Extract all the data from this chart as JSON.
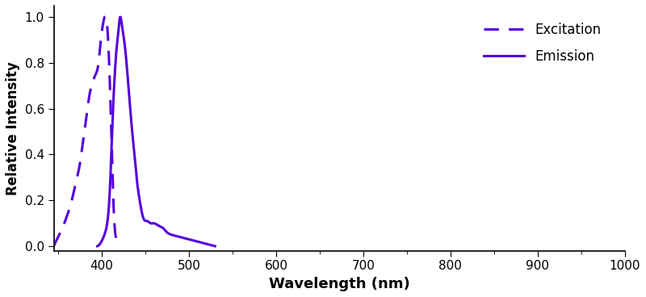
{
  "line_color": "#5500DD",
  "xlabel": "Wavelength (nm)",
  "ylabel": "Relative Intensity",
  "xlim": [
    345,
    1000
  ],
  "ylim": [
    -0.02,
    1.05
  ],
  "xticks": [
    400,
    500,
    600,
    700,
    800,
    900,
    1000
  ],
  "yticks": [
    0.0,
    0.2,
    0.4,
    0.6,
    0.8,
    1.0
  ],
  "legend_excitation": "Excitation",
  "legend_emission": "Emission",
  "excitation_wavelengths": [
    345,
    350,
    355,
    360,
    365,
    370,
    375,
    378,
    381,
    384,
    387,
    390,
    393,
    396,
    399,
    402,
    405,
    408,
    411,
    414,
    417,
    420
  ],
  "excitation_values": [
    0.0,
    0.04,
    0.08,
    0.13,
    0.19,
    0.27,
    0.36,
    0.44,
    0.52,
    0.61,
    0.68,
    0.72,
    0.75,
    0.79,
    0.9,
    0.98,
    1.0,
    0.85,
    0.5,
    0.14,
    0.03,
    0.0
  ],
  "emission_wavelengths": [
    395,
    398,
    401,
    404,
    407,
    409,
    411,
    413,
    415,
    417,
    419,
    421,
    423,
    425,
    428,
    431,
    434,
    437,
    440,
    444,
    448,
    452,
    456,
    460,
    465,
    470,
    475,
    480,
    490,
    500,
    510,
    520,
    530
  ],
  "emission_values": [
    0.0,
    0.01,
    0.03,
    0.06,
    0.12,
    0.22,
    0.4,
    0.6,
    0.75,
    0.86,
    0.93,
    1.0,
    0.97,
    0.92,
    0.82,
    0.68,
    0.54,
    0.42,
    0.3,
    0.19,
    0.12,
    0.11,
    0.1,
    0.1,
    0.09,
    0.08,
    0.06,
    0.05,
    0.04,
    0.03,
    0.02,
    0.01,
    0.0
  ]
}
